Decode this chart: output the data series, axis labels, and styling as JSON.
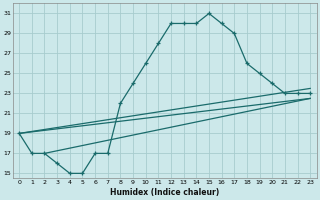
{
  "xlabel": "Humidex (Indice chaleur)",
  "bg_color": "#cce8ea",
  "grid_color": "#a8ccce",
  "line_color": "#1a6b6b",
  "xlim": [
    -0.5,
    23.5
  ],
  "ylim": [
    14.5,
    32.0
  ],
  "xticks": [
    0,
    1,
    2,
    3,
    4,
    5,
    6,
    7,
    8,
    9,
    10,
    11,
    12,
    13,
    14,
    15,
    16,
    17,
    18,
    19,
    20,
    21,
    22,
    23
  ],
  "yticks": [
    15,
    17,
    19,
    21,
    23,
    25,
    27,
    29,
    31
  ],
  "line1_x": [
    0,
    1,
    2,
    3,
    4,
    5,
    6,
    7,
    8,
    9,
    10,
    11,
    12,
    13,
    14,
    15,
    16,
    17,
    18,
    19,
    20,
    21,
    22,
    23
  ],
  "line1_y": [
    19,
    17,
    17,
    16,
    15,
    15,
    17,
    17,
    22,
    24,
    26,
    28,
    30,
    30,
    30,
    31,
    30,
    29,
    26,
    25,
    24,
    23,
    23,
    23
  ],
  "line2_x": [
    0,
    23
  ],
  "line2_y": [
    19,
    23.5
  ],
  "line3_x": [
    0,
    23
  ],
  "line3_y": [
    19,
    22.5
  ],
  "line4_x": [
    2,
    23
  ],
  "line4_y": [
    17,
    22.5
  ]
}
